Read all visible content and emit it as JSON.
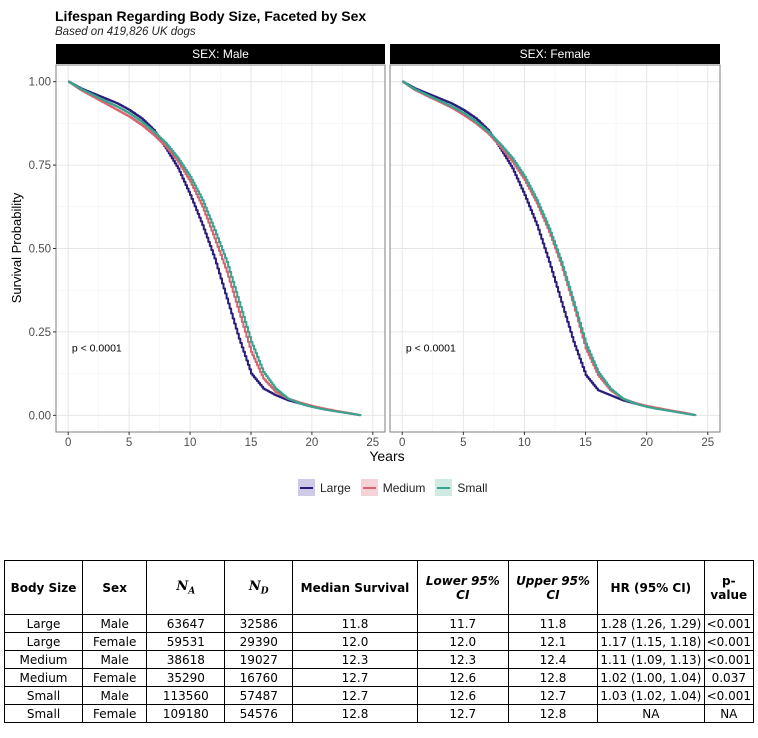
{
  "chart_data": {
    "type": "line",
    "title": "Lifespan Regarding Body Size, Faceted by Sex",
    "subtitle": "Based on 419,826 UK dogs",
    "xlabel": "Years",
    "ylabel": "Survival Probability",
    "xlim": [
      -1,
      26
    ],
    "ylim": [
      -0.05,
      1.05
    ],
    "x_ticks": [
      "0",
      "5",
      "10",
      "15",
      "20",
      "25"
    ],
    "x_tick_values": [
      0,
      5,
      10,
      15,
      20,
      25
    ],
    "y_ticks": [
      "0.00",
      "0.25",
      "0.50",
      "0.75",
      "1.00"
    ],
    "y_tick_values": [
      0,
      0.25,
      0.5,
      0.75,
      1.0
    ],
    "grid": true,
    "legend": {
      "position": "bottom",
      "entries": [
        {
          "name": "Large",
          "color": "#2a1d7a"
        },
        {
          "name": "Medium",
          "color": "#d9636e"
        },
        {
          "name": "Small",
          "color": "#3aa38f"
        }
      ]
    },
    "facets": [
      {
        "label": "SEX: Male",
        "annotation": "p < 0.0001",
        "series": [
          {
            "name": "Large",
            "x": [
              0,
              1,
              2,
              3,
              4,
              5,
              6,
              7,
              8,
              9,
              10,
              11,
              12,
              13,
              14,
              15,
              16,
              17,
              18,
              19,
              20,
              21,
              22,
              23,
              24
            ],
            "values": [
              1.0,
              0.98,
              0.965,
              0.95,
              0.935,
              0.915,
              0.89,
              0.855,
              0.8,
              0.74,
              0.66,
              0.57,
              0.47,
              0.35,
              0.23,
              0.125,
              0.08,
              0.06,
              0.045,
              0.035,
              0.025,
              0.018,
              0.012,
              0.006,
              0.0
            ]
          },
          {
            "name": "Medium",
            "x": [
              0,
              1,
              2,
              3,
              4,
              5,
              6,
              7,
              8,
              9,
              10,
              11,
              12,
              13,
              14,
              15,
              16,
              17,
              18,
              19,
              20,
              21,
              22,
              23,
              24
            ],
            "values": [
              1.0,
              0.975,
              0.955,
              0.935,
              0.915,
              0.895,
              0.87,
              0.84,
              0.805,
              0.76,
              0.7,
              0.625,
              0.53,
              0.43,
              0.31,
              0.19,
              0.11,
              0.07,
              0.05,
              0.038,
              0.028,
              0.02,
              0.013,
              0.007,
              0.0
            ]
          },
          {
            "name": "Small",
            "x": [
              0,
              1,
              2,
              3,
              4,
              5,
              6,
              7,
              8,
              9,
              10,
              11,
              12,
              13,
              14,
              15,
              16,
              17,
              18,
              19,
              20,
              21,
              22,
              23,
              24
            ],
            "values": [
              1.0,
              0.978,
              0.96,
              0.942,
              0.925,
              0.905,
              0.88,
              0.85,
              0.815,
              0.77,
              0.715,
              0.645,
              0.555,
              0.46,
              0.34,
              0.22,
              0.13,
              0.08,
              0.05,
              0.035,
              0.025,
              0.017,
              0.011,
              0.006,
              0.0
            ]
          }
        ]
      },
      {
        "label": "SEX: Female",
        "annotation": "p < 0.0001",
        "series": [
          {
            "name": "Large",
            "x": [
              0,
              1,
              2,
              3,
              4,
              5,
              6,
              7,
              8,
              9,
              10,
              11,
              12,
              13,
              14,
              15,
              16,
              17,
              18,
              19,
              20,
              21,
              22,
              23,
              24
            ],
            "values": [
              1.0,
              0.98,
              0.965,
              0.95,
              0.935,
              0.915,
              0.89,
              0.855,
              0.8,
              0.74,
              0.66,
              0.57,
              0.46,
              0.34,
              0.22,
              0.12,
              0.075,
              0.06,
              0.045,
              0.035,
              0.026,
              0.019,
              0.013,
              0.007,
              0.0
            ]
          },
          {
            "name": "Medium",
            "x": [
              0,
              1,
              2,
              3,
              4,
              5,
              6,
              7,
              8,
              9,
              10,
              11,
              12,
              13,
              14,
              15,
              16,
              17,
              18,
              19,
              20,
              21,
              22,
              23,
              24
            ],
            "values": [
              1.0,
              0.975,
              0.957,
              0.94,
              0.922,
              0.9,
              0.875,
              0.845,
              0.805,
              0.76,
              0.705,
              0.635,
              0.55,
              0.45,
              0.33,
              0.2,
              0.12,
              0.075,
              0.05,
              0.037,
              0.028,
              0.021,
              0.014,
              0.008,
              0.0
            ]
          },
          {
            "name": "Small",
            "x": [
              0,
              1,
              2,
              3,
              4,
              5,
              6,
              7,
              8,
              9,
              10,
              11,
              12,
              13,
              14,
              15,
              16,
              17,
              18,
              19,
              20,
              21,
              22,
              23,
              24
            ],
            "values": [
              1.0,
              0.977,
              0.96,
              0.943,
              0.926,
              0.906,
              0.88,
              0.85,
              0.812,
              0.77,
              0.715,
              0.645,
              0.56,
              0.46,
              0.34,
              0.215,
              0.13,
              0.08,
              0.05,
              0.035,
              0.025,
              0.018,
              0.012,
              0.006,
              0.0
            ]
          }
        ]
      }
    ]
  },
  "table": {
    "headers": [
      "Body Size",
      "Sex",
      "N",
      "N",
      "Median Survival",
      "Lower 95% CI",
      "Upper 95% CI",
      "HR (95% CI)",
      "p-value"
    ],
    "header_subscripts": {
      "2": "A",
      "3": "D"
    },
    "rows": [
      [
        "Large",
        "Male",
        "63647",
        "32586",
        "11.8",
        "11.7",
        "11.8",
        "1.28 (1.26, 1.29)",
        "<0.001"
      ],
      [
        "Large",
        "Female",
        "59531",
        "29390",
        "12.0",
        "12.0",
        "12.1",
        "1.17 (1.15, 1.18)",
        "<0.001"
      ],
      [
        "Medium",
        "Male",
        "38618",
        "19027",
        "12.3",
        "12.3",
        "12.4",
        "1.11 (1.09, 1.13)",
        "<0.001"
      ],
      [
        "Medium",
        "Female",
        "35290",
        "16760",
        "12.7",
        "12.6",
        "12.8",
        "1.02 (1.00, 1.04)",
        "0.037"
      ],
      [
        "Small",
        "Male",
        "113560",
        "57487",
        "12.7",
        "12.6",
        "12.7",
        "1.03 (1.02, 1.04)",
        "<0.001"
      ],
      [
        "Small",
        "Female",
        "109180",
        "54576",
        "12.8",
        "12.7",
        "12.8",
        "NA",
        "NA"
      ]
    ]
  }
}
